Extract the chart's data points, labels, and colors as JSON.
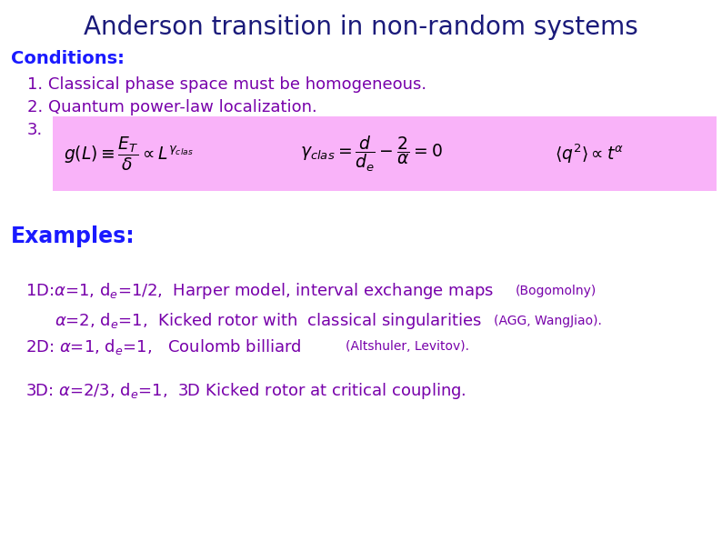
{
  "title": "Anderson transition in non-random systems",
  "title_color": "#1a1a7a",
  "title_fontsize": 20,
  "background_color": "#ffffff",
  "conditions_label": "Conditions:",
  "conditions_color": "#1a1aff",
  "conditions_fontsize": 14,
  "item1": "1. Classical phase space must be homogeneous.",
  "item2": "2. Quantum power-law localization.",
  "item3": "3.",
  "items_color": "#7700aa",
  "items_fontsize": 13,
  "pink_box_color": "#f9b3f9",
  "examples_label": "Examples:",
  "examples_color": "#1a1aff",
  "examples_fontsize": 17,
  "ex1a": "1D:",
  "ex1b": "$\\alpha$=1, d$_e$=1/2,  Harper model, interval exchange maps",
  "ex1_small": "(Bogomolny)",
  "ex2a": "",
  "ex2b": "      $\\alpha$=2, d$_e$=1,  Kicked rotor with  classical singularities",
  "ex2_small": "(AGG, WangJiao).",
  "ex3a": "2D:",
  "ex3b": " $\\alpha$=1, d$_e$=1,   Coulomb billiard",
  "ex3_small": "(Altshuler, Levitov).",
  "ex4": "3D: $\\alpha$=2/3, d$_e$=1,  3D Kicked rotor at critical coupling.",
  "examples_color2": "#7700aa",
  "formula1": "$g(L) \\equiv \\dfrac{E_T}{\\delta} \\propto L^{\\gamma_{clas}}$",
  "formula2": "$\\gamma_{clas} = \\dfrac{d}{d_e} - \\dfrac{2}{\\alpha} = 0$",
  "formula3": "$\\langle q^2 \\rangle \\propto t^{\\alpha}$"
}
